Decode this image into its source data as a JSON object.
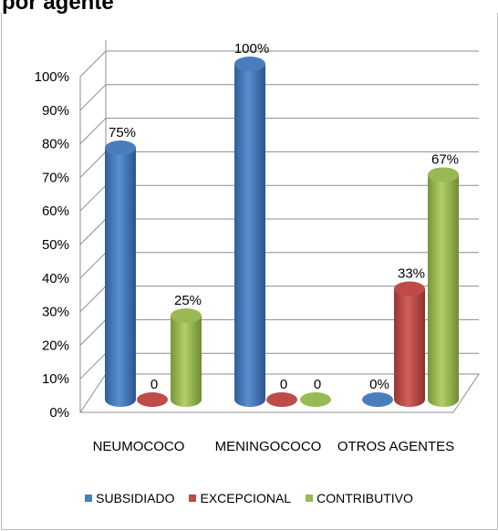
{
  "header": {
    "title_fragment": "por agente"
  },
  "chart_data": {
    "type": "bar",
    "categories": [
      "NEUMOCOCO",
      "MENINGOCOCO",
      "OTROS AGENTES"
    ],
    "series": [
      {
        "name": "SUBSIDIADO",
        "values": [
          75,
          100,
          0
        ],
        "labels": [
          "75%",
          "100%",
          "0%"
        ],
        "color": "#4a7ebb"
      },
      {
        "name": "EXCEPCIONAL",
        "values": [
          0,
          0,
          33
        ],
        "labels": [
          "0",
          "0",
          "33%"
        ],
        "color": "#be4b48"
      },
      {
        "name": "CONTRIBUTIVO",
        "values": [
          25,
          0,
          67
        ],
        "labels": [
          "25%",
          "0",
          "67%"
        ],
        "color": "#98b954"
      }
    ],
    "y_ticks": [
      "0%",
      "10%",
      "20%",
      "30%",
      "40%",
      "50%",
      "60%",
      "70%",
      "80%",
      "90%",
      "100%"
    ],
    "ylim": [
      0,
      100
    ],
    "grid": true,
    "legend_position": "bottom",
    "style": "3d-cylinder"
  }
}
